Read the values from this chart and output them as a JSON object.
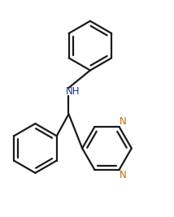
{
  "bg_color": "#ffffff",
  "bond_color": "#1a1a1a",
  "N_color": "#cc6600",
  "NH_color": "#1a3399",
  "line_width": 1.6,
  "dbo": 0.025,
  "font_size_N": 8.5,
  "font_size_NH": 8.5,
  "xlim": [
    0.0,
    1.0
  ],
  "ylim": [
    -0.05,
    1.3
  ],
  "figw": 2.14,
  "figh": 2.67,
  "dpi": 100
}
